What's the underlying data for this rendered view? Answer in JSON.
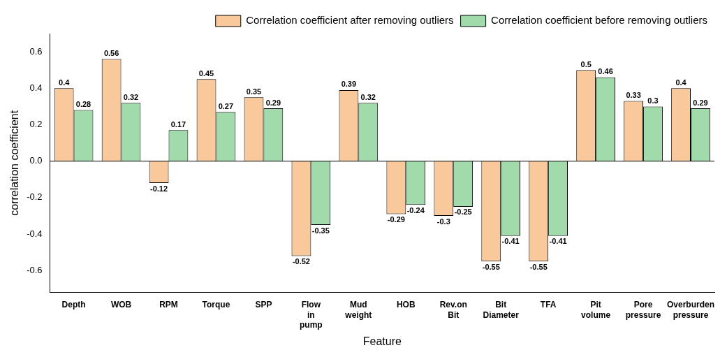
{
  "chart_data": {
    "type": "bar",
    "xlabel": "Feature",
    "ylabel": "correlation coefficient",
    "categories": [
      "Depth",
      "WOB",
      "RPM",
      "Torque",
      "SPP",
      "Flow in pump",
      "Mud weight",
      "HOB",
      "Rev.on Bit",
      "Bit Diameter",
      "TFA",
      "Pit volume",
      "Pore pressure",
      "Overburden pressure"
    ],
    "series": [
      {
        "name": "Correlation coefficient after removing outliers",
        "color": "#f9c89b",
        "values": [
          0.4,
          0.56,
          -0.12,
          0.45,
          0.35,
          -0.52,
          0.39,
          -0.29,
          -0.3,
          -0.55,
          -0.55,
          0.5,
          0.33,
          0.4
        ]
      },
      {
        "name": "Correlation coefficient before removing outliers",
        "color": "#a1dbab",
        "values": [
          0.28,
          0.32,
          0.17,
          0.27,
          0.29,
          -0.35,
          0.32,
          -0.24,
          -0.25,
          -0.41,
          -0.41,
          0.46,
          0.3,
          0.29
        ]
      }
    ],
    "ylim": [
      -0.72,
      0.7
    ],
    "yticks": [
      {
        "value": -0.6,
        "label": "-0.6"
      },
      {
        "value": -0.4,
        "label": "-0.4"
      },
      {
        "value": -0.2,
        "label": "-0.2"
      },
      {
        "value": 0,
        "label": "0.0"
      },
      {
        "value": 0.2,
        "label": "0.2"
      },
      {
        "value": 0.4,
        "label": "0.4"
      },
      {
        "value": 0.6,
        "label": "0.6"
      }
    ],
    "ref_lines": [
      {
        "axis": "y",
        "value": 0,
        "color": "#000000"
      }
    ],
    "data_labels": true,
    "legend": "top right",
    "grid": false
  }
}
